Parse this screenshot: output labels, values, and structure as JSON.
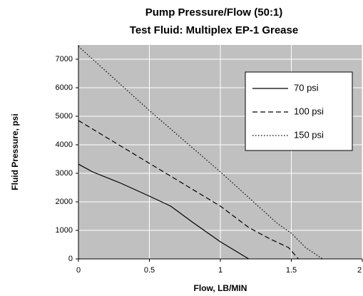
{
  "chart_data": {
    "type": "line",
    "title": "Pump Pressure/Flow (50:1)",
    "subtitle": "Test Fluid: Multiplex EP-1 Grease",
    "x_label": "Flow, LB/MIN",
    "y_label": "Fluid Pressure, psi",
    "xlim": [
      0,
      2
    ],
    "xticks": [
      0,
      0.5,
      1,
      1.5,
      2
    ],
    "ylim": [
      0,
      7500
    ],
    "yticks": [
      0,
      1000,
      2000,
      3000,
      4000,
      5000,
      6000,
      7000
    ],
    "grid": true,
    "legend": "upper right",
    "background": "#c0c0c0",
    "series": [
      {
        "name": "70 psi",
        "color": "#000000",
        "dash": "solid",
        "x": [
          0,
          0.1,
          0.3,
          0.5,
          0.65,
          0.8,
          1.0,
          1.2
        ],
        "values": [
          3320,
          3050,
          2650,
          2200,
          1850,
          1300,
          600,
          0
        ]
      },
      {
        "name": "100 psi",
        "color": "#000000",
        "dash": "dashed",
        "x": [
          0,
          0.1,
          0.3,
          0.5,
          0.7,
          0.9,
          1.0,
          1.2,
          1.35,
          1.48,
          1.55
        ],
        "values": [
          4850,
          4550,
          3950,
          3350,
          2750,
          2150,
          1850,
          1100,
          700,
          400,
          0
        ]
      },
      {
        "name": "150 psi",
        "color": "#000000",
        "dash": "dotted",
        "x": [
          0,
          0.5,
          1.0,
          1.2,
          1.4,
          1.5,
          1.6,
          1.72
        ],
        "values": [
          7450,
          5200,
          3050,
          2150,
          1250,
          900,
          400,
          0
        ]
      }
    ]
  }
}
